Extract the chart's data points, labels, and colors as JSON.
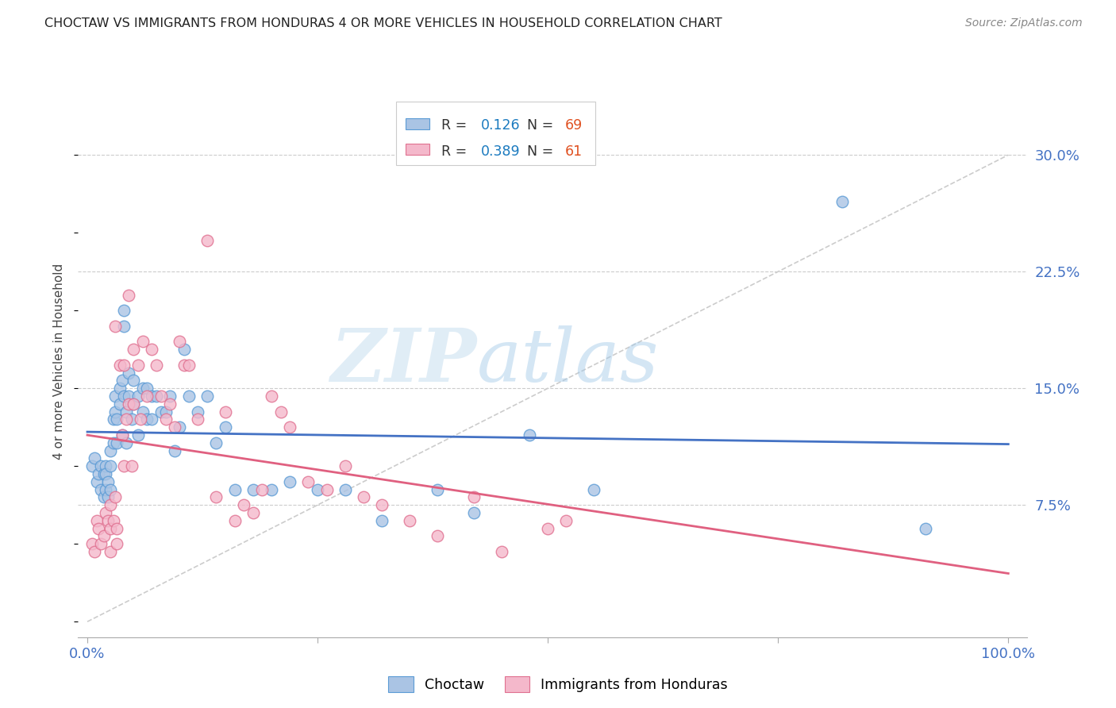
{
  "title": "CHOCTAW VS IMMIGRANTS FROM HONDURAS 4 OR MORE VEHICLES IN HOUSEHOLD CORRELATION CHART",
  "source": "Source: ZipAtlas.com",
  "ylabel_label": "4 or more Vehicles in Household",
  "ytick_labels": [
    "7.5%",
    "15.0%",
    "22.5%",
    "30.0%"
  ],
  "ytick_values": [
    0.075,
    0.15,
    0.225,
    0.3
  ],
  "xlim": [
    -0.01,
    1.02
  ],
  "ylim": [
    -0.01,
    0.345
  ],
  "background_color": "#ffffff",
  "grid_color": "#cccccc",
  "choctaw_color": "#aac4e4",
  "choctaw_edge_color": "#5b9bd5",
  "choctaw_line_color": "#4472c4",
  "honduras_color": "#f4b8cb",
  "honduras_edge_color": "#e07090",
  "honduras_line_color": "#e06080",
  "diagonal_color": "#cccccc",
  "legend_R1": "0.126",
  "legend_N1": "69",
  "legend_R2": "0.389",
  "legend_N2": "61",
  "watermark_zip": "ZIP",
  "watermark_atlas": "atlas",
  "choctaw_label": "Choctaw",
  "honduras_label": "Immigrants from Honduras",
  "tick_color": "#4472c4",
  "choctaw_scatter_x": [
    0.005,
    0.008,
    0.01,
    0.012,
    0.015,
    0.015,
    0.018,
    0.018,
    0.02,
    0.02,
    0.02,
    0.022,
    0.022,
    0.025,
    0.025,
    0.025,
    0.028,
    0.028,
    0.03,
    0.03,
    0.032,
    0.032,
    0.035,
    0.035,
    0.038,
    0.038,
    0.04,
    0.04,
    0.04,
    0.042,
    0.042,
    0.045,
    0.045,
    0.048,
    0.05,
    0.05,
    0.055,
    0.055,
    0.06,
    0.06,
    0.065,
    0.065,
    0.07,
    0.07,
    0.075,
    0.08,
    0.085,
    0.09,
    0.095,
    0.1,
    0.105,
    0.11,
    0.12,
    0.13,
    0.14,
    0.15,
    0.16,
    0.18,
    0.2,
    0.22,
    0.25,
    0.28,
    0.32,
    0.38,
    0.42,
    0.48,
    0.55,
    0.82,
    0.91
  ],
  "choctaw_scatter_y": [
    0.1,
    0.105,
    0.09,
    0.095,
    0.1,
    0.085,
    0.095,
    0.08,
    0.1,
    0.095,
    0.085,
    0.09,
    0.08,
    0.11,
    0.1,
    0.085,
    0.13,
    0.115,
    0.145,
    0.135,
    0.13,
    0.115,
    0.15,
    0.14,
    0.155,
    0.12,
    0.2,
    0.19,
    0.145,
    0.135,
    0.115,
    0.16,
    0.145,
    0.13,
    0.155,
    0.14,
    0.145,
    0.12,
    0.15,
    0.135,
    0.15,
    0.13,
    0.145,
    0.13,
    0.145,
    0.135,
    0.135,
    0.145,
    0.11,
    0.125,
    0.175,
    0.145,
    0.135,
    0.145,
    0.115,
    0.125,
    0.085,
    0.085,
    0.085,
    0.09,
    0.085,
    0.085,
    0.065,
    0.085,
    0.07,
    0.12,
    0.085,
    0.27,
    0.06
  ],
  "honduras_scatter_x": [
    0.005,
    0.008,
    0.01,
    0.012,
    0.015,
    0.018,
    0.02,
    0.022,
    0.025,
    0.025,
    0.025,
    0.028,
    0.03,
    0.03,
    0.032,
    0.032,
    0.035,
    0.038,
    0.04,
    0.04,
    0.042,
    0.045,
    0.045,
    0.048,
    0.05,
    0.05,
    0.055,
    0.058,
    0.06,
    0.065,
    0.07,
    0.075,
    0.08,
    0.085,
    0.09,
    0.095,
    0.1,
    0.105,
    0.11,
    0.12,
    0.13,
    0.14,
    0.15,
    0.16,
    0.17,
    0.18,
    0.19,
    0.2,
    0.21,
    0.22,
    0.24,
    0.26,
    0.28,
    0.3,
    0.32,
    0.35,
    0.38,
    0.42,
    0.45,
    0.5,
    0.52
  ],
  "honduras_scatter_y": [
    0.05,
    0.045,
    0.065,
    0.06,
    0.05,
    0.055,
    0.07,
    0.065,
    0.075,
    0.06,
    0.045,
    0.065,
    0.19,
    0.08,
    0.06,
    0.05,
    0.165,
    0.12,
    0.165,
    0.1,
    0.13,
    0.21,
    0.14,
    0.1,
    0.175,
    0.14,
    0.165,
    0.13,
    0.18,
    0.145,
    0.175,
    0.165,
    0.145,
    0.13,
    0.14,
    0.125,
    0.18,
    0.165,
    0.165,
    0.13,
    0.245,
    0.08,
    0.135,
    0.065,
    0.075,
    0.07,
    0.085,
    0.145,
    0.135,
    0.125,
    0.09,
    0.085,
    0.1,
    0.08,
    0.075,
    0.065,
    0.055,
    0.08,
    0.045,
    0.06,
    0.065
  ]
}
